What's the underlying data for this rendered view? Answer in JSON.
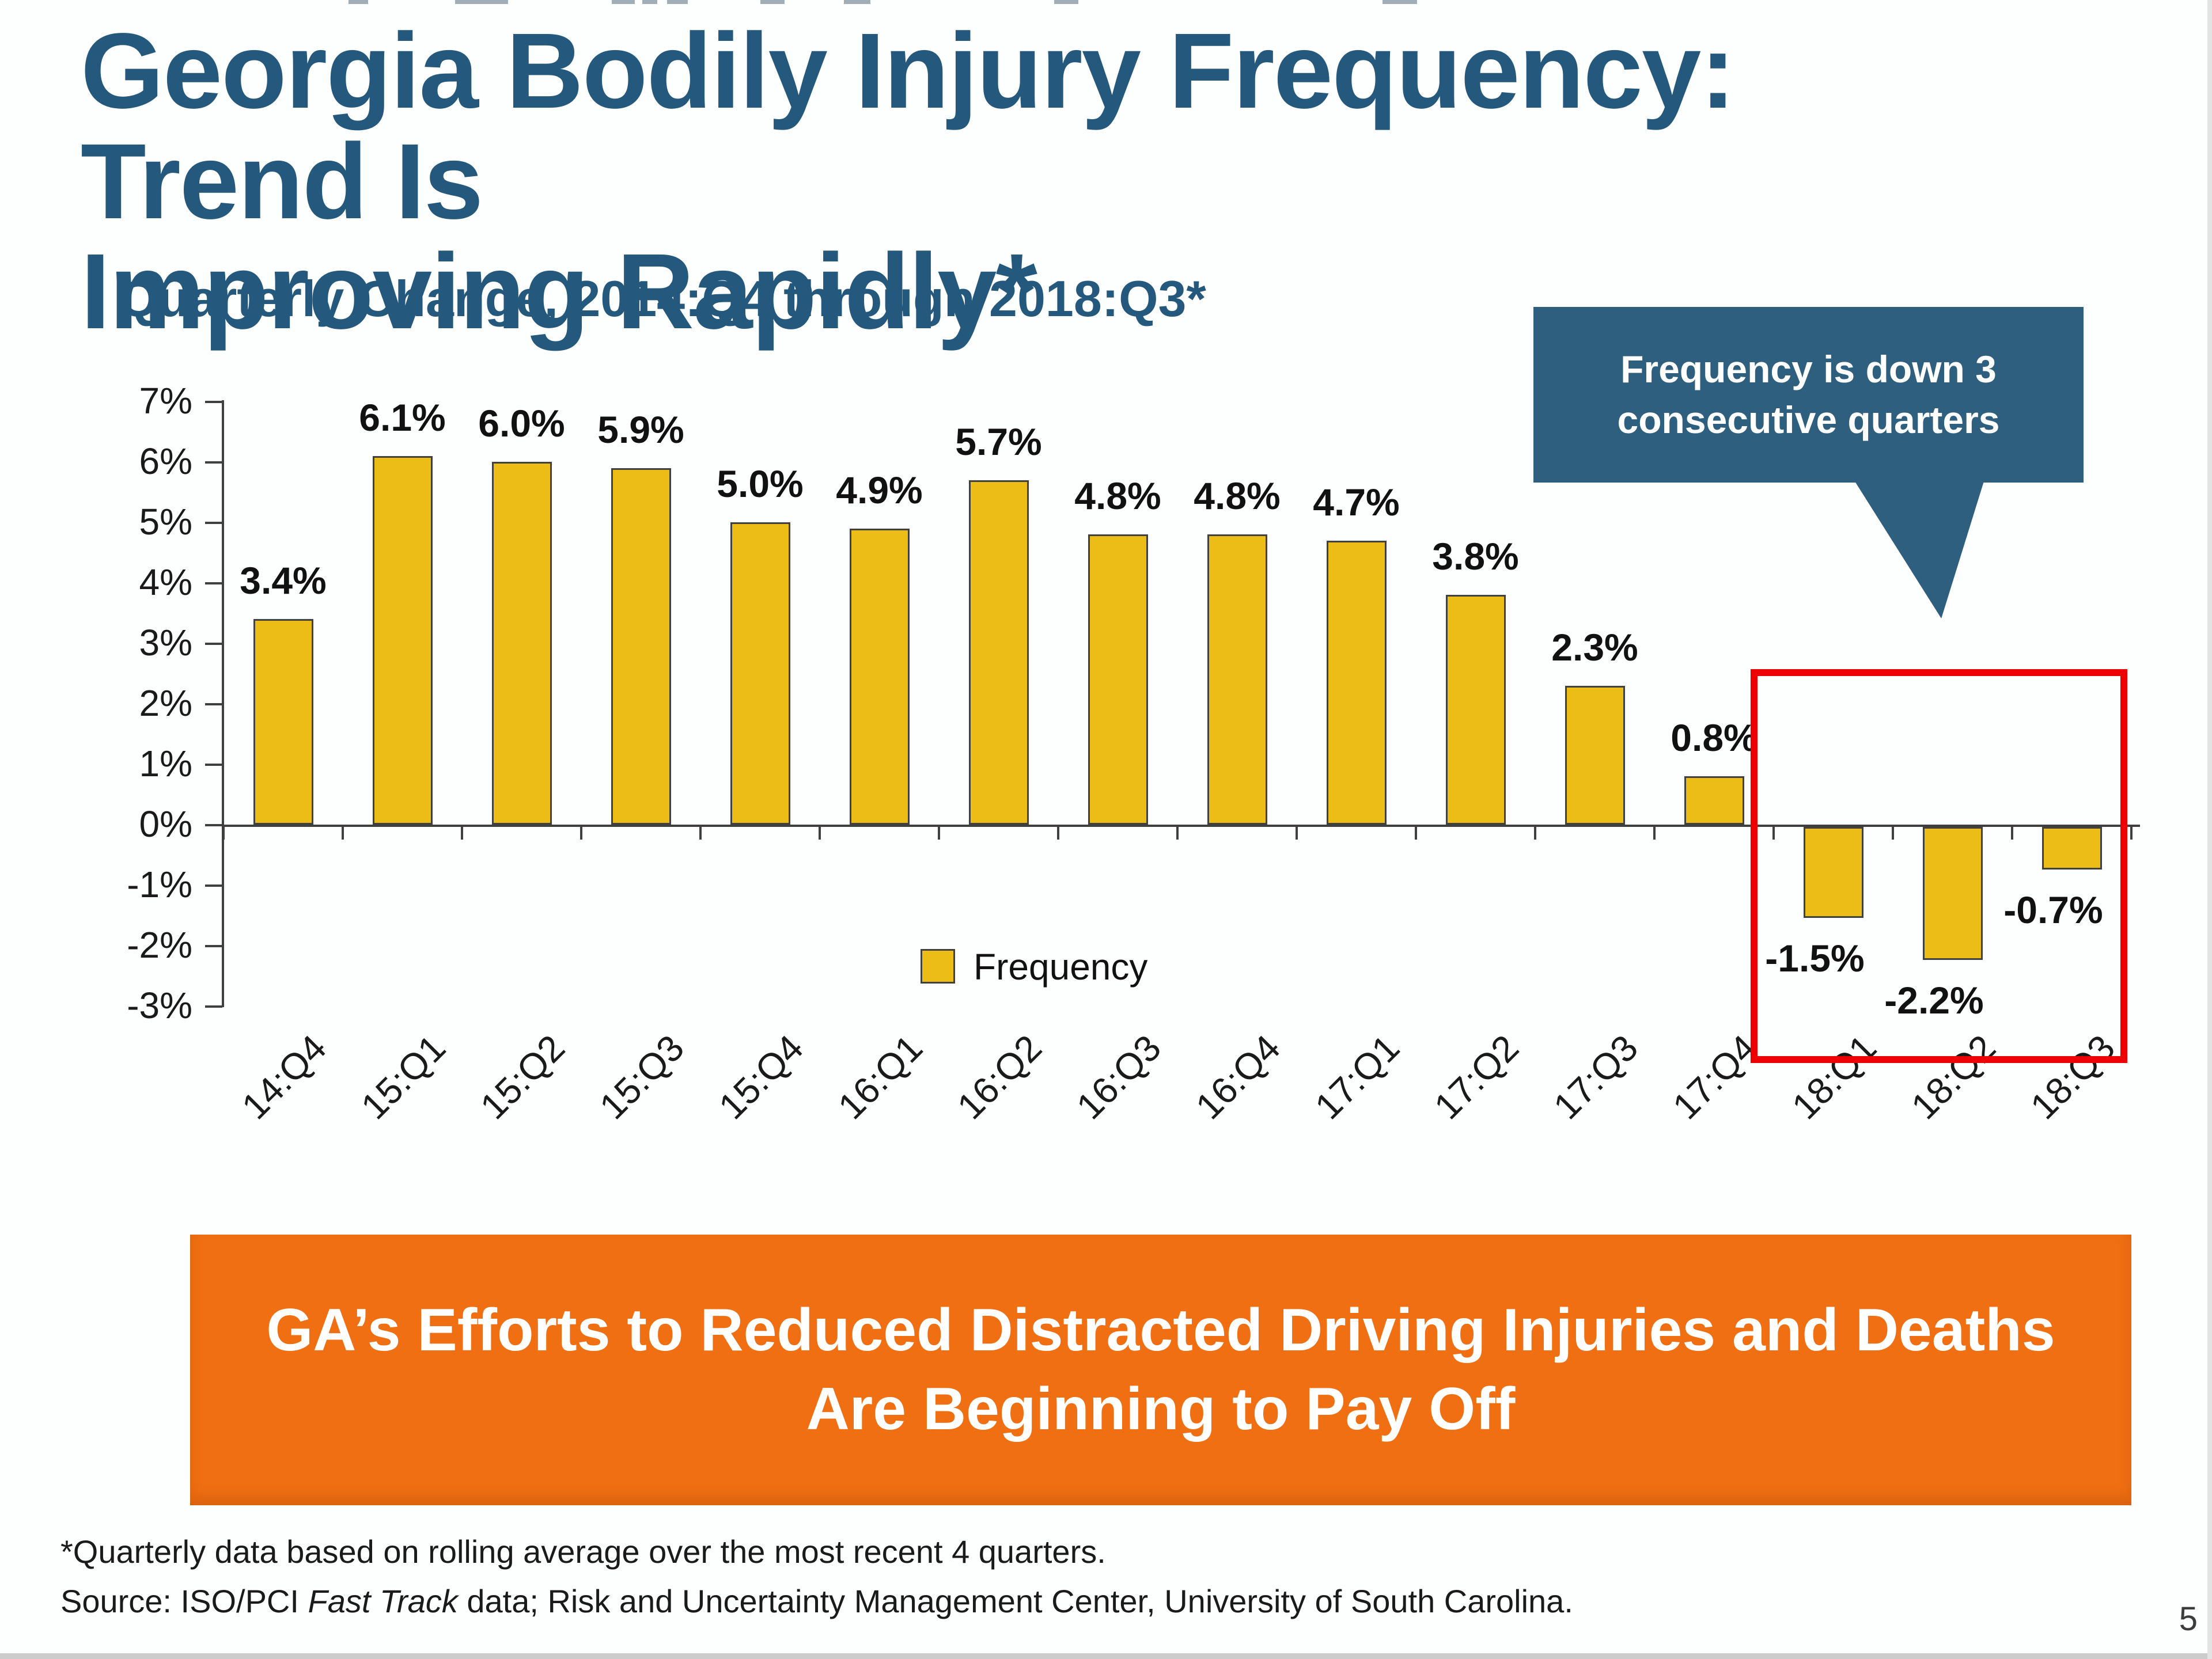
{
  "slide": {
    "title_line1": "Georgia Bodily Injury Frequency: Trend Is",
    "title_line2": "Improving Rapidly*",
    "callout_line1": "Frequency is down 3",
    "callout_line2": "consecutive quarters",
    "banner_line1": "GA’s Efforts to Reduced Distracted Driving Injuries and Deaths",
    "banner_line2": "Are Beginning to Pay Off",
    "footnote1": "*Quarterly data based on rolling average over the most recent 4 quarters.",
    "footnote2_prefix": "Source: ISO/PCI ",
    "footnote2_italic": "Fast Track",
    "footnote2_suffix": " data; Risk and Uncertainty Management Center, University of South Carolina.",
    "page_number": "5"
  },
  "chart_data": {
    "type": "bar",
    "title": "Quarterly Change, 2014:Q4 through 2018:Q3*",
    "categories": [
      "14:Q4",
      "15:Q1",
      "15:Q2",
      "15:Q3",
      "15:Q4",
      "16:Q1",
      "16:Q2",
      "16:Q3",
      "16:Q4",
      "17:Q1",
      "17:Q2",
      "17:Q3",
      "17:Q4",
      "18:Q1",
      "18:Q2",
      "18:Q3"
    ],
    "values": [
      3.4,
      6.1,
      6.0,
      5.9,
      5.0,
      4.9,
      5.7,
      4.8,
      4.8,
      4.7,
      3.8,
      2.3,
      0.8,
      -1.5,
      -2.2,
      -0.7
    ],
    "labels": [
      "3.4%",
      "6.1%",
      "6.0%",
      "5.9%",
      "5.0%",
      "4.9%",
      "5.7%",
      "4.8%",
      "4.8%",
      "4.7%",
      "3.8%",
      "2.3%",
      "0.8%",
      "-1.5%",
      "-2.2%",
      "-0.7%"
    ],
    "xlabel": "",
    "ylabel": "",
    "ylim": [
      -3,
      7
    ],
    "ytick_step": 1,
    "ytick_suffix": "%",
    "grid": "off",
    "legend": {
      "label": "Frequency",
      "position": "bottom-center"
    },
    "annotations": {
      "highlight_note": "Red box around the last 3 quarters (18:Q1–18:Q3)",
      "callout_target": "18:Q2 area"
    }
  },
  "colors": {
    "title": "#24587C",
    "callout_bg": "#2E5F7E",
    "banner_bg": "#F06F12",
    "bar_fill": "#EDBD17",
    "bar_border": "#404040",
    "highlight_box": "#EE0000",
    "axis": "#3F3F3F"
  }
}
